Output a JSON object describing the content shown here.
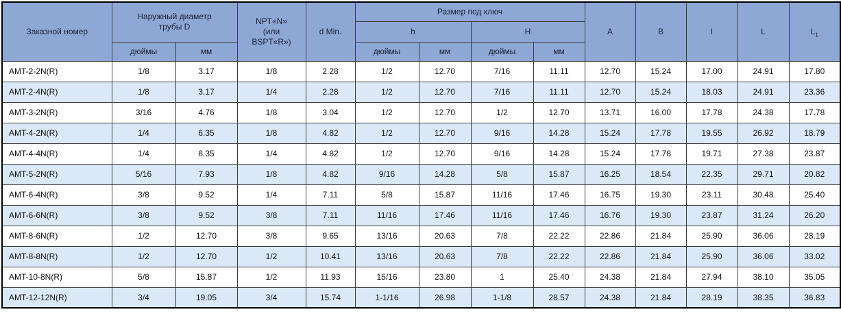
{
  "colors": {
    "header_bg": "#8EA8D6",
    "row_alt_bg": "#DBE8F7",
    "row_bg": "#FFFFFF",
    "border": "#3C3C3C",
    "outer_border": "#000000"
  },
  "table": {
    "header": {
      "order_number": "Заказной номер",
      "outer_diameter_line1": "Наружный диаметр",
      "outer_diameter_line2": "трубы D",
      "npt_line1": "NPT«N»",
      "npt_line2": "(или",
      "npt_line3": "BSPT«R»)",
      "d_min": "d Min.",
      "wrench_title": "Размер под ключ",
      "h_label": "h",
      "H_label": "H",
      "inches_label": "дюймы",
      "mm_label": "мм",
      "a_label": "A",
      "b_label": "B",
      "l_label": "l",
      "L_label": "L",
      "L1_base": "L",
      "L1_subscript": "1"
    },
    "rows": [
      [
        "AMT-2-2N(R)",
        "1/8",
        "3.17",
        "1/8",
        "2.28",
        "1/2",
        "12.70",
        "7/16",
        "11.11",
        "12.70",
        "15.24",
        "17.00",
        "24.91",
        "17.80"
      ],
      [
        "AMT-2-4N(R)",
        "1/8",
        "3.17",
        "1/4",
        "2.28",
        "1/2",
        "12.70",
        "7/16",
        "11.11",
        "12.70",
        "15.24",
        "18.03",
        "24.91",
        "23.36"
      ],
      [
        "AMT-3-2N(R)",
        "3/16",
        "4.76",
        "1/8",
        "3.04",
        "1/2",
        "12.70",
        "1/2",
        "12.70",
        "13.71",
        "16.00",
        "17.78",
        "24.38",
        "17.78"
      ],
      [
        "AMT-4-2N(R)",
        "1/4",
        "6.35",
        "1/8",
        "4.82",
        "1/2",
        "12.70",
        "9/16",
        "14.28",
        "15.24",
        "17.78",
        "19.55",
        "26.92",
        "18.79"
      ],
      [
        "AMT-4-4N(R)",
        "1/4",
        "6.35",
        "1/4",
        "4.82",
        "1/2",
        "12.70",
        "9/16",
        "14.28",
        "15.24",
        "17.78",
        "19.71",
        "27.38",
        "23.87"
      ],
      [
        "AMT-5-2N(R)",
        "5/16",
        "7.93",
        "1/8",
        "4.82",
        "9/16",
        "14.28",
        "5/8",
        "15.87",
        "16.25",
        "18.54",
        "22.35",
        "29.71",
        "20.82"
      ],
      [
        "AMT-6-4N(R)",
        "3/8",
        "9.52",
        "1/4",
        "7.11",
        "5/8",
        "15.87",
        "11/16",
        "17.46",
        "16.75",
        "19.30",
        "23.11",
        "30.48",
        "25.40"
      ],
      [
        "AMT-6-6N(R)",
        "3/8",
        "9.52",
        "3/8",
        "7.11",
        "11/16",
        "17.46",
        "11/16",
        "17.46",
        "16.76",
        "19.30",
        "23.87",
        "31.24",
        "26.20"
      ],
      [
        "AMT-8-6N(R)",
        "1/2",
        "12.70",
        "3/8",
        "9.65",
        "13/16",
        "20.63",
        "7/8",
        "22.22",
        "22.86",
        "21.84",
        "25.90",
        "36.06",
        "28.19"
      ],
      [
        "AMT-8-8N(R)",
        "1/2",
        "12.70",
        "1/2",
        "10.41",
        "13/16",
        "20.63",
        "7/8",
        "22.22",
        "22.86",
        "21.84",
        "25.90",
        "36.06",
        "33.02"
      ],
      [
        "AMT-10-8N(R)",
        "5/8",
        "15.87",
        "1/2",
        "11.93",
        "15/16",
        "23.80",
        "1",
        "25.40",
        "24.38",
        "21.84",
        "27.94",
        "38.10",
        "35.05"
      ],
      [
        "AMT-12-12N(R)",
        "3/4",
        "19.05",
        "3/4",
        "15.74",
        "1-1/16",
        "26.98",
        "1-1/8",
        "28.57",
        "24.38",
        "21.84",
        "28.19",
        "38.35",
        "36.83"
      ]
    ]
  }
}
